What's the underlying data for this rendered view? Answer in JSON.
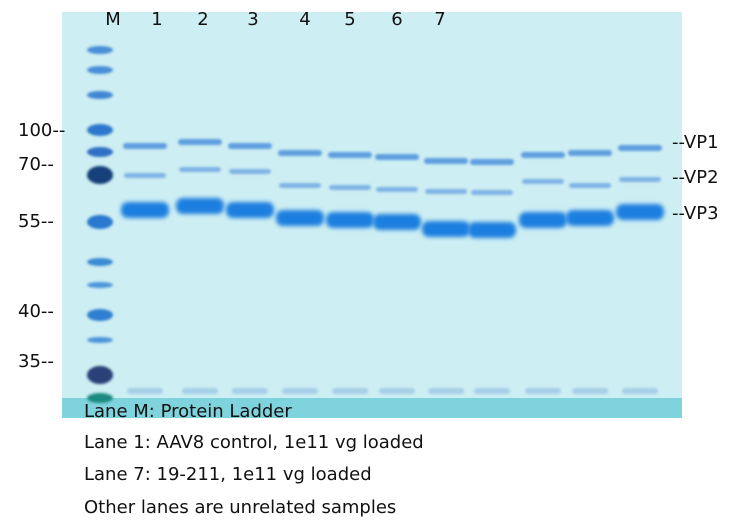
{
  "lanes": [
    "M",
    "1",
    "2",
    "3",
    "4",
    "5",
    "6",
    "7"
  ],
  "markers": [
    "100--",
    "70--",
    "55--",
    "40--",
    "35--"
  ],
  "bands": [
    "--VP1",
    "--VP2",
    "--VP3"
  ],
  "caption": [
    "Lane M: Protein Ladder",
    "Lane 1: AAV8 control, 1e11 vg loaded",
    "Lane 7: 19-211, 1e11 vg loaded",
    "Other lanes are unrelated samples"
  ]
}
